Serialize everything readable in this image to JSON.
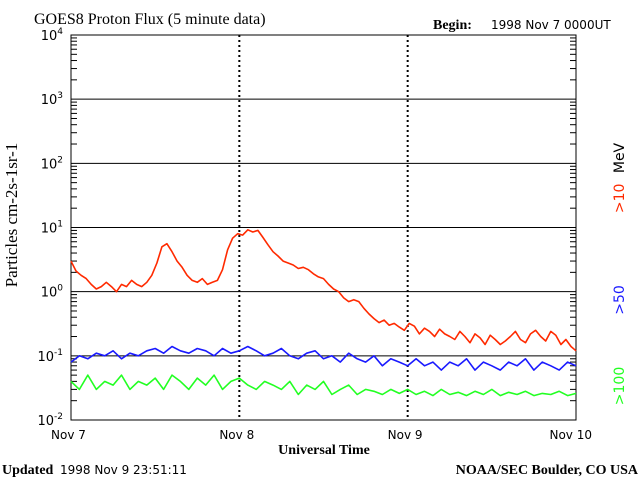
{
  "header": {
    "title": "GOES8 Proton Flux (5 minute data)",
    "begin_label": "Begin:",
    "begin_value": "1998 Nov 7 0000UT"
  },
  "footer": {
    "updated_label": "Updated",
    "updated_value": "1998 Nov  9 23:51:11",
    "credit": "NOAA/SEC Boulder, CO USA"
  },
  "chart_data": {
    "type": "line",
    "title": "GOES8 Proton Flux (5 minute data)",
    "xlabel": "Universal Time",
    "ylabel": "Particles cm-2s-1sr-1",
    "yscale": "log",
    "ylim": [
      0.01,
      10000
    ],
    "xlim": [
      0,
      3
    ],
    "x_unit": "days since 1998 Nov 7 00:00 UT",
    "x_ticks": [
      {
        "value": 0,
        "label": "Nov 7"
      },
      {
        "value": 1,
        "label": "Nov 8"
      },
      {
        "value": 2,
        "label": "Nov 9"
      },
      {
        "value": 3,
        "label": "Nov 10"
      }
    ],
    "y_ticks": [
      {
        "value": 0.01,
        "base": "10",
        "exp": "-2"
      },
      {
        "value": 0.1,
        "base": "10",
        "exp": "-1"
      },
      {
        "value": 1,
        "base": "10",
        "exp": "0"
      },
      {
        "value": 10,
        "base": "10",
        "exp": "1"
      },
      {
        "value": 100,
        "base": "10",
        "exp": "2"
      },
      {
        "value": 1000,
        "base": "10",
        "exp": "3"
      },
      {
        "value": 10000,
        "base": "10",
        "exp": "4"
      }
    ],
    "grid": true,
    "legend_position": "right",
    "series": [
      {
        "name": ">10",
        "unit": "MeV",
        "color": "#ff2a00",
        "x": [
          0.0,
          0.03,
          0.06,
          0.09,
          0.12,
          0.15,
          0.18,
          0.21,
          0.24,
          0.27,
          0.3,
          0.33,
          0.36,
          0.39,
          0.42,
          0.45,
          0.48,
          0.51,
          0.54,
          0.57,
          0.6,
          0.63,
          0.66,
          0.69,
          0.72,
          0.75,
          0.78,
          0.81,
          0.84,
          0.87,
          0.9,
          0.93,
          0.96,
          0.99,
          1.02,
          1.05,
          1.08,
          1.11,
          1.14,
          1.17,
          1.2,
          1.23,
          1.26,
          1.29,
          1.32,
          1.35,
          1.38,
          1.41,
          1.44,
          1.47,
          1.5,
          1.53,
          1.56,
          1.59,
          1.62,
          1.65,
          1.68,
          1.71,
          1.74,
          1.77,
          1.8,
          1.83,
          1.86,
          1.89,
          1.92,
          1.95,
          1.98,
          2.01,
          2.04,
          2.07,
          2.1,
          2.13,
          2.16,
          2.19,
          2.22,
          2.25,
          2.28,
          2.31,
          2.34,
          2.37,
          2.4,
          2.43,
          2.46,
          2.49,
          2.52,
          2.55,
          2.58,
          2.61,
          2.64,
          2.67,
          2.7,
          2.73,
          2.76,
          2.79,
          2.82,
          2.85,
          2.88,
          2.91,
          2.94,
          2.97,
          3.0
        ],
        "values": [
          3.0,
          2.1,
          1.8,
          1.6,
          1.3,
          1.1,
          1.2,
          1.4,
          1.2,
          1.0,
          1.3,
          1.2,
          1.5,
          1.3,
          1.2,
          1.4,
          1.8,
          2.8,
          5.0,
          5.6,
          4.2,
          3.0,
          2.4,
          1.8,
          1.5,
          1.4,
          1.6,
          1.3,
          1.4,
          1.5,
          2.2,
          4.5,
          6.8,
          8.0,
          7.6,
          9.2,
          8.5,
          9.0,
          7.0,
          5.4,
          4.2,
          3.6,
          3.0,
          2.8,
          2.6,
          2.3,
          2.4,
          2.2,
          1.9,
          1.7,
          1.6,
          1.3,
          1.1,
          1.0,
          0.8,
          0.7,
          0.75,
          0.7,
          0.55,
          0.45,
          0.38,
          0.33,
          0.36,
          0.3,
          0.32,
          0.28,
          0.25,
          0.32,
          0.29,
          0.22,
          0.27,
          0.24,
          0.2,
          0.26,
          0.22,
          0.2,
          0.18,
          0.24,
          0.2,
          0.16,
          0.22,
          0.19,
          0.15,
          0.21,
          0.18,
          0.15,
          0.17,
          0.2,
          0.24,
          0.18,
          0.16,
          0.22,
          0.25,
          0.2,
          0.17,
          0.24,
          0.21,
          0.15,
          0.18,
          0.14,
          0.12
        ]
      },
      {
        "name": ">50",
        "color": "#1a1aff",
        "x": [
          0.0,
          0.05,
          0.1,
          0.15,
          0.2,
          0.25,
          0.3,
          0.35,
          0.4,
          0.45,
          0.5,
          0.55,
          0.6,
          0.65,
          0.7,
          0.75,
          0.8,
          0.85,
          0.9,
          0.95,
          1.0,
          1.05,
          1.1,
          1.15,
          1.2,
          1.25,
          1.3,
          1.35,
          1.4,
          1.45,
          1.5,
          1.55,
          1.6,
          1.65,
          1.7,
          1.75,
          1.8,
          1.85,
          1.9,
          1.95,
          2.0,
          2.05,
          2.1,
          2.15,
          2.2,
          2.25,
          2.3,
          2.35,
          2.4,
          2.45,
          2.5,
          2.55,
          2.6,
          2.65,
          2.7,
          2.75,
          2.8,
          2.85,
          2.9,
          2.95,
          3.0
        ],
        "values": [
          0.08,
          0.1,
          0.09,
          0.11,
          0.1,
          0.12,
          0.09,
          0.11,
          0.1,
          0.12,
          0.13,
          0.11,
          0.14,
          0.12,
          0.11,
          0.13,
          0.12,
          0.1,
          0.13,
          0.11,
          0.12,
          0.14,
          0.12,
          0.1,
          0.11,
          0.13,
          0.1,
          0.09,
          0.11,
          0.12,
          0.09,
          0.1,
          0.08,
          0.11,
          0.09,
          0.08,
          0.1,
          0.07,
          0.09,
          0.08,
          0.07,
          0.09,
          0.07,
          0.08,
          0.06,
          0.08,
          0.07,
          0.09,
          0.06,
          0.08,
          0.07,
          0.06,
          0.08,
          0.07,
          0.09,
          0.06,
          0.08,
          0.07,
          0.06,
          0.08,
          0.07
        ]
      },
      {
        "name": ">100",
        "color": "#22ff22",
        "x": [
          0.0,
          0.05,
          0.1,
          0.15,
          0.2,
          0.25,
          0.3,
          0.35,
          0.4,
          0.45,
          0.5,
          0.55,
          0.6,
          0.65,
          0.7,
          0.75,
          0.8,
          0.85,
          0.9,
          0.95,
          1.0,
          1.05,
          1.1,
          1.15,
          1.2,
          1.25,
          1.3,
          1.35,
          1.4,
          1.45,
          1.5,
          1.55,
          1.6,
          1.65,
          1.7,
          1.75,
          1.8,
          1.85,
          1.9,
          1.95,
          2.0,
          2.05,
          2.1,
          2.15,
          2.2,
          2.25,
          2.3,
          2.35,
          2.4,
          2.45,
          2.5,
          2.55,
          2.6,
          2.65,
          2.7,
          2.75,
          2.8,
          2.85,
          2.9,
          2.95,
          3.0
        ],
        "values": [
          0.04,
          0.03,
          0.05,
          0.03,
          0.04,
          0.035,
          0.05,
          0.03,
          0.04,
          0.035,
          0.045,
          0.03,
          0.05,
          0.04,
          0.03,
          0.045,
          0.035,
          0.05,
          0.03,
          0.04,
          0.045,
          0.035,
          0.03,
          0.04,
          0.035,
          0.03,
          0.04,
          0.025,
          0.035,
          0.03,
          0.04,
          0.025,
          0.03,
          0.035,
          0.025,
          0.03,
          0.028,
          0.025,
          0.03,
          0.026,
          0.03,
          0.025,
          0.028,
          0.024,
          0.03,
          0.025,
          0.027,
          0.024,
          0.028,
          0.025,
          0.03,
          0.024,
          0.027,
          0.025,
          0.028,
          0.024,
          0.026,
          0.025,
          0.028,
          0.024,
          0.026
        ]
      }
    ]
  }
}
